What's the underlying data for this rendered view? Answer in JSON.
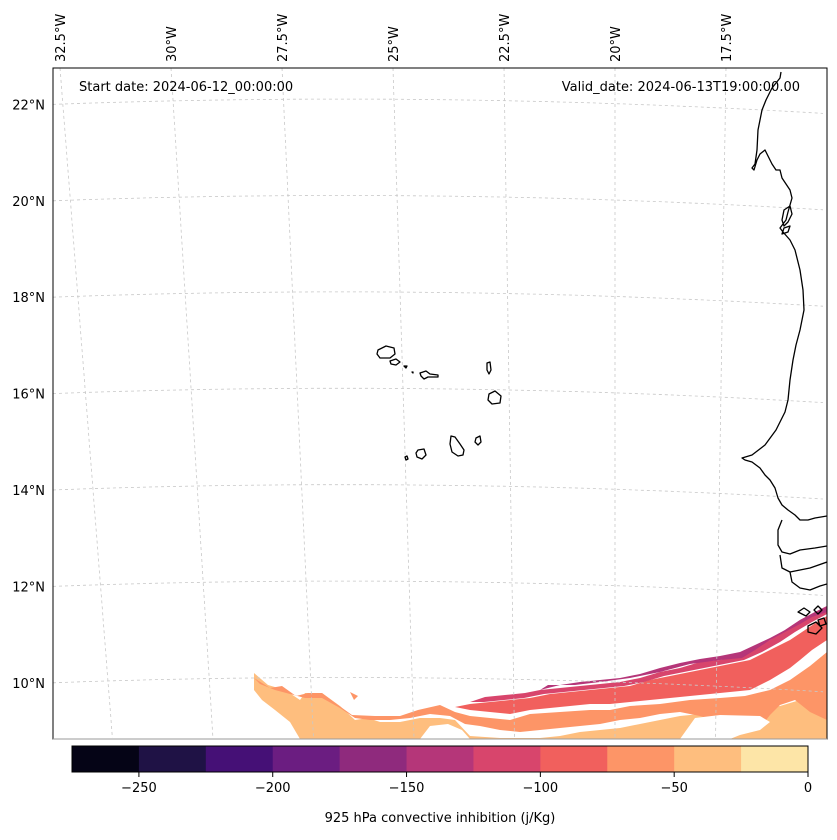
{
  "chart_data": {
    "type": "heatmap",
    "title": "",
    "annotations": {
      "start_date": "Start date: 2024-06-12_00:00:00",
      "valid_date": "Valid_date: 2024-06-13T19:00:00.00"
    },
    "x_axis": {
      "position": "top",
      "tick_labels": [
        "32.5°W",
        "30°W",
        "27.5°W",
        "25°W",
        "22.5°W",
        "20°W",
        "17.5°W"
      ],
      "tick_values": [
        -32.5,
        -30,
        -27.5,
        -25,
        -22.5,
        -20,
        -17.5
      ]
    },
    "y_axis": {
      "position": "left",
      "tick_labels": [
        "22°N",
        "20°N",
        "18°N",
        "16°N",
        "14°N",
        "12°N",
        "10°N"
      ],
      "tick_values": [
        22,
        20,
        18,
        16,
        14,
        12,
        10
      ]
    },
    "extent": {
      "lon": [
        -32.6,
        -15.6
      ],
      "lat": [
        8.9,
        22.7
      ]
    },
    "grid": true,
    "variable": "925 hPa convective inhibition",
    "units": "j/Kg",
    "colorbar": {
      "label": "925 hPa convective inhibition (j/Kg)",
      "orientation": "horizontal",
      "placement": "bottom",
      "colormap": "magma",
      "levels": [
        -275,
        -250,
        -225,
        -200,
        -175,
        -150,
        -125,
        -100,
        -75,
        -50,
        -25,
        0
      ],
      "tick_labels": [
        "−250",
        "−200",
        "−150",
        "−100",
        "−50",
        "0"
      ],
      "tick_values": [
        -250,
        -200,
        -150,
        -100,
        -50,
        0
      ],
      "colors": [
        "#050416",
        "#1f1245",
        "#451076",
        "#6b1d81",
        "#8f2a7d",
        "#b53679",
        "#d8456c",
        "#f1605d",
        "#fd9567",
        "#febe7e",
        "#fde5a7"
      ]
    },
    "field_description": "CIN band across southern edge (approx 9–11.5°N), values mostly -25 to -150 j/Kg, strongest (most negative, -125 to -150) along northern edge of band between 24°W and 17°W; weakest (-25 to -50) near 28–24°W and near the African coast.",
    "land_features": [
      "Cape Verde Islands",
      "West African coastline (Mauritania, Senegal, Gambia, Guinea-Bissau, Guinea)"
    ]
  }
}
